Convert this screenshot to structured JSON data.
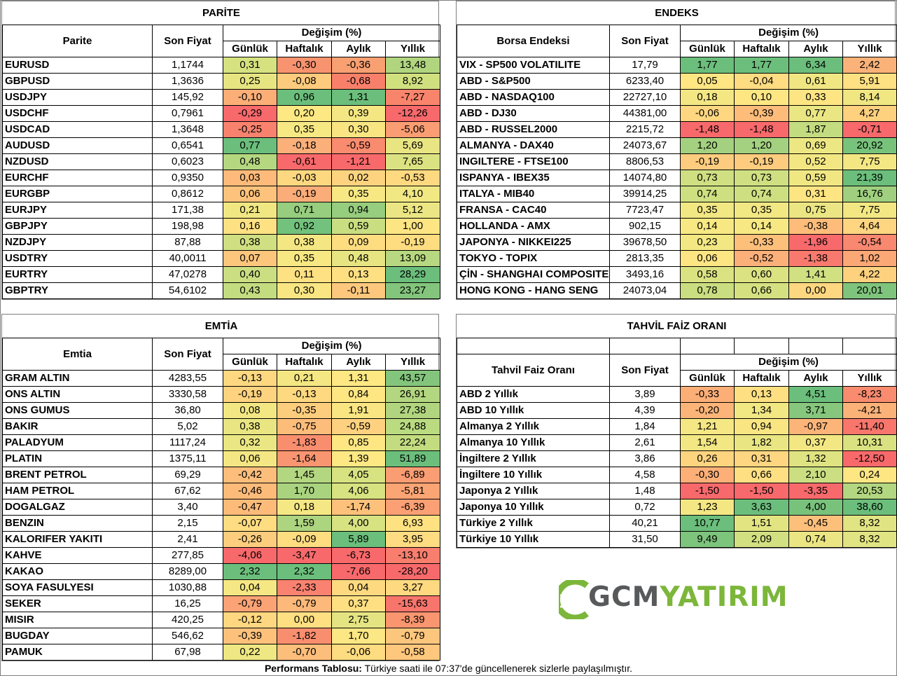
{
  "parite": {
    "title": "PARİTE",
    "col_name": "Parite",
    "col_price": "Son Fiyat",
    "col_change": "Değişim (%)",
    "sub": [
      "Günlük",
      "Haftalık",
      "Aylık",
      "Yıllık"
    ],
    "rows": [
      {
        "name": "EURUSD",
        "price": "1,1744",
        "vals": [
          "0,31",
          "-0,30",
          "-0,36",
          "13,48"
        ],
        "colors": [
          "#d6e27f",
          "#f8936f",
          "#f8a072",
          "#b1d57f"
        ]
      },
      {
        "name": "GBPUSD",
        "price": "1,3636",
        "vals": [
          "0,25",
          "-0,08",
          "-0,68",
          "8,92"
        ],
        "colors": [
          "#e7e582",
          "#fdcb7d",
          "#f8806b",
          "#d1e07f"
        ]
      },
      {
        "name": "USDJPY",
        "price": "145,92",
        "vals": [
          "-0,10",
          "0,96",
          "1,31",
          "-7,27"
        ],
        "colors": [
          "#fcae77",
          "#6bbe7b",
          "#6bbe7b",
          "#f9846c"
        ]
      },
      {
        "name": "USDCHF",
        "price": "0,7961",
        "vals": [
          "-0,29",
          "0,20",
          "0,39",
          "-12,26"
        ],
        "colors": [
          "#f8696b",
          "#fde883",
          "#f4e783",
          "#f8696b"
        ]
      },
      {
        "name": "USDCAD",
        "price": "1,3648",
        "vals": [
          "-0,25",
          "0,35",
          "0,30",
          "-5,06"
        ],
        "colors": [
          "#f9826e",
          "#f6e883",
          "#f9e683",
          "#fa9d73"
        ]
      },
      {
        "name": "AUDUSD",
        "price": "0,6541",
        "vals": [
          "0,77",
          "-0,18",
          "-0,59",
          "5,69"
        ],
        "colors": [
          "#6bbe7b",
          "#fbb07a",
          "#f98b6e",
          "#e8e582"
        ]
      },
      {
        "name": "NZDUSD",
        "price": "0,6023",
        "vals": [
          "0,48",
          "-0,61",
          "-1,21",
          "7,65"
        ],
        "colors": [
          "#b5d780",
          "#f8696b",
          "#f8696b",
          "#dbe281"
        ]
      },
      {
        "name": "EURCHF",
        "price": "0,9350",
        "vals": [
          "0,03",
          "-0,03",
          "0,02",
          "-0,53"
        ],
        "colors": [
          "#fdba7a",
          "#fdd880",
          "#fed37f",
          "#fed980"
        ]
      },
      {
        "name": "EURGBP",
        "price": "0,8612",
        "vals": [
          "0,06",
          "-0,19",
          "0,35",
          "4,10"
        ],
        "colors": [
          "#fdc37c",
          "#fbad79",
          "#f7e883",
          "#f1e783"
        ]
      },
      {
        "name": "EURJPY",
        "price": "171,38",
        "vals": [
          "0,21",
          "0,71",
          "0,94",
          "5,12"
        ],
        "colors": [
          "#f0e783",
          "#96cd7e",
          "#96cd7e",
          "#ebe683"
        ]
      },
      {
        "name": "GBPJPY",
        "price": "198,98",
        "vals": [
          "0,16",
          "0,92",
          "0,59",
          "1,00"
        ],
        "colors": [
          "#fde182",
          "#72c17c",
          "#c9de81",
          "#fee583"
        ]
      },
      {
        "name": "NZDJPY",
        "price": "87,88",
        "vals": [
          "0,38",
          "0,38",
          "0,09",
          "-0,19"
        ],
        "colors": [
          "#d0df81",
          "#f4e783",
          "#fedd81",
          "#fedd81"
        ]
      },
      {
        "name": "USDTRY",
        "price": "40,0011",
        "vals": [
          "0,07",
          "0,35",
          "0,48",
          "13,09"
        ],
        "colors": [
          "#fdc67d",
          "#f7e883",
          "#e7e582",
          "#b7d880"
        ]
      },
      {
        "name": "EURTRY",
        "price": "47,0278",
        "vals": [
          "0,40",
          "0,11",
          "0,13",
          "28,29"
        ],
        "colors": [
          "#cbde81",
          "#fee182",
          "#fee082",
          "#6bbe7b"
        ]
      },
      {
        "name": "GBPTRY",
        "price": "54,6102",
        "vals": [
          "0,43",
          "0,30",
          "-0,11",
          "23,27"
        ],
        "colors": [
          "#c4dc80",
          "#f9e683",
          "#fdc87d",
          "#83c57c"
        ]
      }
    ]
  },
  "endeks": {
    "title": "ENDEKS",
    "col_name": "Borsa Endeksi",
    "col_price": "Son Fiyat",
    "col_change": "Değişim (%)",
    "sub": [
      "Günlük",
      "Haftalık",
      "Aylık",
      "Yıllık"
    ],
    "rows": [
      {
        "name": "VIX  - SP500 VOLATILITE",
        "price": "17,79",
        "vals": [
          "1,77",
          "1,77",
          "6,34",
          "2,42"
        ],
        "colors": [
          "#6bbe7b",
          "#6bbe7b",
          "#6bbe7b",
          "#fbb279"
        ]
      },
      {
        "name": "ABD - S&P500",
        "price": "6233,40",
        "vals": [
          "0,05",
          "-0,04",
          "0,61",
          "5,91"
        ],
        "colors": [
          "#fee683",
          "#fedc81",
          "#f0e783",
          "#fee182"
        ]
      },
      {
        "name": "ABD - NASDAQ100",
        "price": "22727,10",
        "vals": [
          "0,18",
          "0,10",
          "0,33",
          "8,14"
        ],
        "colors": [
          "#f4e783",
          "#fee783",
          "#fee583",
          "#f0e783"
        ]
      },
      {
        "name": "ABD - DJ30",
        "price": "44381,00",
        "vals": [
          "-0,06",
          "-0,39",
          "0,77",
          "4,27"
        ],
        "colors": [
          "#fed780",
          "#fdbc7a",
          "#eae683",
          "#fed17f"
        ]
      },
      {
        "name": "ABD - RUSSEL2000",
        "price": "2215,72",
        "vals": [
          "-1,48",
          "-1,48",
          "1,87",
          "-0,71"
        ],
        "colors": [
          "#f8696b",
          "#f8696b",
          "#c4dc80",
          "#f8696b"
        ]
      },
      {
        "name": "ALMANYA - DAX40",
        "price": "24073,67",
        "vals": [
          "1,20",
          "1,20",
          "0,69",
          "20,92"
        ],
        "colors": [
          "#a4d17f",
          "#a4d17f",
          "#ede783",
          "#78c37c"
        ]
      },
      {
        "name": "INGILTERE - FTSE100",
        "price": "8806,53",
        "vals": [
          "-0,19",
          "-0,19",
          "0,52",
          "7,75"
        ],
        "colors": [
          "#fdcc7e",
          "#fdcc7e",
          "#f3e783",
          "#f3e783"
        ]
      },
      {
        "name": "ISPANYA - IBEX35",
        "price": "14074,80",
        "vals": [
          "0,73",
          "0,73",
          "0,59",
          "21,39"
        ],
        "colors": [
          "#cfdf81",
          "#cfdf81",
          "#f0e783",
          "#6bbe7b"
        ]
      },
      {
        "name": "ITALYA - MIB40",
        "price": "39914,25",
        "vals": [
          "0,74",
          "0,74",
          "0,31",
          "16,76"
        ],
        "colors": [
          "#cedf81",
          "#cedf81",
          "#fee583",
          "#a0d07f"
        ]
      },
      {
        "name": "FRANSA - CAC40",
        "price": "7723,47",
        "vals": [
          "0,35",
          "0,35",
          "0,75",
          "7,75"
        ],
        "colors": [
          "#f1e783",
          "#f1e783",
          "#ebe683",
          "#f3e783"
        ]
      },
      {
        "name": "HOLLANDA - AMX",
        "price": "902,15",
        "vals": [
          "0,14",
          "0,14",
          "-0,38",
          "4,64"
        ],
        "colors": [
          "#f7e883",
          "#f7e883",
          "#fdbc7a",
          "#fed580"
        ]
      },
      {
        "name": "JAPONYA - NIKKEI225",
        "price": "39678,50",
        "vals": [
          "0,23",
          "-0,33",
          "-1,96",
          "-0,54"
        ],
        "colors": [
          "#f2e783",
          "#fdc07b",
          "#f8696b",
          "#f98871"
        ]
      },
      {
        "name": "TOKYO - TOPIX",
        "price": "2813,35",
        "vals": [
          "0,06",
          "-0,52",
          "-1,38",
          "1,02"
        ],
        "colors": [
          "#fee583",
          "#fbb07a",
          "#f8796e",
          "#fca876"
        ]
      },
      {
        "name": "ÇİN - SHANGHAI COMPOSITE",
        "price": "3493,16",
        "vals": [
          "0,58",
          "0,60",
          "1,41",
          "4,22"
        ],
        "colors": [
          "#dbe281",
          "#dae281",
          "#d1e081",
          "#fed17f"
        ]
      },
      {
        "name": "HONG KONG - HANG SENG",
        "price": "24073,04",
        "vals": [
          "0,78",
          "0,66",
          "0,00",
          "20,01"
        ],
        "colors": [
          "#cadd80",
          "#d5e181",
          "#fed780",
          "#7fc47c"
        ]
      }
    ]
  },
  "emtia": {
    "title": "EMTİA",
    "col_name": "Emtia",
    "col_price": "Son Fiyat",
    "col_change": "Değişim (%)",
    "sub": [
      "Günlük",
      "Haftalık",
      "Aylık",
      "Yıllık"
    ],
    "rows": [
      {
        "name": "GRAM ALTIN",
        "price": "4283,55",
        "vals": [
          "-0,13",
          "0,21",
          "1,31",
          "43,57"
        ],
        "colors": [
          "#fed880",
          "#f4e783",
          "#fee883",
          "#83c57c"
        ]
      },
      {
        "name": "ONS ALTIN",
        "price": "3330,58",
        "vals": [
          "-0,19",
          "-0,13",
          "0,84",
          "26,91"
        ],
        "colors": [
          "#fdd37f",
          "#fed980",
          "#fee683",
          "#b3d680"
        ]
      },
      {
        "name": "ONS GUMUS",
        "price": "36,80",
        "vals": [
          "0,08",
          "-0,35",
          "1,91",
          "27,38"
        ],
        "colors": [
          "#f3e783",
          "#fdcd7e",
          "#f9e683",
          "#b1d57f"
        ]
      },
      {
        "name": "BAKIR",
        "price": "5,02",
        "vals": [
          "0,38",
          "-0,75",
          "-0,59",
          "24,88"
        ],
        "colors": [
          "#e8e582",
          "#fcbc7a",
          "#fdd17f",
          "#badb80"
        ]
      },
      {
        "name": "PALADYUM",
        "price": "1117,24",
        "vals": [
          "0,32",
          "-1,83",
          "0,85",
          "22,24"
        ],
        "colors": [
          "#eae683",
          "#f98e6f",
          "#fee683",
          "#c3dc80"
        ]
      },
      {
        "name": "PLATIN",
        "price": "1375,11",
        "vals": [
          "0,06",
          "-1,64",
          "1,39",
          "51,89"
        ],
        "colors": [
          "#f4e783",
          "#f99570",
          "#fee883",
          "#6bbe7b"
        ]
      },
      {
        "name": "BRENT PETROL",
        "price": "69,29",
        "vals": [
          "-0,42",
          "1,45",
          "4,05",
          "-6,89"
        ],
        "colors": [
          "#fdbe7b",
          "#b3d680",
          "#d7e281",
          "#fa9d73"
        ]
      },
      {
        "name": "HAM PETROL",
        "price": "67,62",
        "vals": [
          "-0,46",
          "1,70",
          "4,06",
          "-5,81"
        ],
        "colors": [
          "#fdbb7a",
          "#a9d37f",
          "#d7e281",
          "#fba474"
        ]
      },
      {
        "name": "DOGALGAZ",
        "price": "3,40",
        "vals": [
          "-0,47",
          "0,18",
          "-1,74",
          "-6,39"
        ],
        "colors": [
          "#fdbb7a",
          "#f5e783",
          "#fdc17b",
          "#fba074"
        ]
      },
      {
        "name": "BENZIN",
        "price": "2,15",
        "vals": [
          "-0,07",
          "1,59",
          "4,00",
          "6,93"
        ],
        "colors": [
          "#fedc81",
          "#add47f",
          "#d7e281",
          "#fee282"
        ]
      },
      {
        "name": "KALORIFER YAKITI",
        "price": "2,41",
        "vals": [
          "-0,26",
          "-0,09",
          "5,89",
          "3,95"
        ],
        "colors": [
          "#fdcd7e",
          "#fedd81",
          "#6bbe7b",
          "#fedc81"
        ]
      },
      {
        "name": "KAHVE",
        "price": "277,85",
        "vals": [
          "-4,06",
          "-3,47",
          "-6,73",
          "-13,10"
        ],
        "colors": [
          "#f8696b",
          "#f8696b",
          "#f8696b",
          "#f97e6d"
        ]
      },
      {
        "name": "KAKAO",
        "price": "8289,00",
        "vals": [
          "2,32",
          "2,32",
          "-7,66",
          "-28,20"
        ],
        "colors": [
          "#6bbe7b",
          "#6bbe7b",
          "#f8696b",
          "#f8696b"
        ]
      },
      {
        "name": "SOYA FASULYESI",
        "price": "1030,88",
        "vals": [
          "0,04",
          "-2,33",
          "0,04",
          "3,27"
        ],
        "colors": [
          "#f5e783",
          "#f98270",
          "#fed980",
          "#fed980"
        ]
      },
      {
        "name": "SEKER",
        "price": "16,25",
        "vals": [
          "-0,79",
          "-0,79",
          "0,37",
          "-15,63"
        ],
        "colors": [
          "#fca376",
          "#fcb97a",
          "#fee082",
          "#f8756c"
        ]
      },
      {
        "name": "MISIR",
        "price": "420,25",
        "vals": [
          "-0,12",
          "0,00",
          "2,75",
          "-8,39"
        ],
        "colors": [
          "#fed780",
          "#fedf82",
          "#e4e582",
          "#f9956f"
        ]
      },
      {
        "name": "BUGDAY",
        "price": "546,62",
        "vals": [
          "-0,39",
          "-1,82",
          "1,70",
          "-0,79"
        ],
        "colors": [
          "#fdc17b",
          "#f98e6f",
          "#fbe783",
          "#fdc67d"
        ]
      },
      {
        "name": "PAMUK",
        "price": "67,98",
        "vals": [
          "0,22",
          "-0,70",
          "-0,06",
          "-0,58"
        ],
        "colors": [
          "#eee783",
          "#fcbe7b",
          "#fedc81",
          "#fdc77d"
        ]
      }
    ]
  },
  "tahvil": {
    "title": "TAHVİL FAİZ ORANI",
    "col_name": "Tahvil Faiz Oranı",
    "col_price": "Son Fiyat",
    "col_change": "Değişim (%)",
    "sub": [
      "Günlük",
      "Haftalık",
      "Aylık",
      "Yıllık"
    ],
    "rows": [
      {
        "name": "ABD 2 Yıllık",
        "price": "3,89",
        "vals": [
          "-0,33",
          "0,13",
          "4,51",
          "-8,23"
        ],
        "colors": [
          "#fcae77",
          "#fee082",
          "#6bbe7b",
          "#f98b6e"
        ]
      },
      {
        "name": "ABD 10 Yıllık",
        "price": "4,39",
        "vals": [
          "-0,20",
          "1,34",
          "3,71",
          "-4,21"
        ],
        "colors": [
          "#fcb479",
          "#f1e783",
          "#86c67d",
          "#fbb279"
        ]
      },
      {
        "name": "Almanya 2 Yıllık",
        "price": "1,84",
        "vals": [
          "1,21",
          "0,94",
          "-0,97",
          "-11,40"
        ],
        "colors": [
          "#f5e783",
          "#f9e683",
          "#fcb479",
          "#f8766c"
        ]
      },
      {
        "name": "Almanya 10 Yıllık",
        "price": "2,61",
        "vals": [
          "1,54",
          "1,82",
          "0,37",
          "10,31"
        ],
        "colors": [
          "#f2e783",
          "#e8e582",
          "#f3e783",
          "#d9e181"
        ]
      },
      {
        "name": "İngiltere 2 Yıllık",
        "price": "3,86",
        "vals": [
          "0,26",
          "0,31",
          "1,32",
          "-12,50"
        ],
        "colors": [
          "#fed47f",
          "#fed580",
          "#dfe381",
          "#f8696b"
        ]
      },
      {
        "name": "İngiltere 10 Yıllık",
        "price": "4,58",
        "vals": [
          "-0,30",
          "0,66",
          "2,10",
          "0,24"
        ],
        "colors": [
          "#fcb077",
          "#fedf82",
          "#cbde81",
          "#fee683"
        ]
      },
      {
        "name": "Japonya 2 Yıllık",
        "price": "1,48",
        "vals": [
          "-1,50",
          "-1,50",
          "-3,35",
          "20,53"
        ],
        "colors": [
          "#f8696b",
          "#f8696b",
          "#f8696b",
          "#b3d680"
        ]
      },
      {
        "name": "Japonya 10 Yıllık",
        "price": "0,72",
        "vals": [
          "1,23",
          "3,63",
          "4,00",
          "38,60"
        ],
        "colors": [
          "#f4e783",
          "#6bbe7b",
          "#79c27c",
          "#6bbe7b"
        ]
      },
      {
        "name": "Türkiye 2 Yıllık",
        "price": "40,21",
        "vals": [
          "10,77",
          "1,51",
          "-0,45",
          "8,32"
        ],
        "colors": [
          "#6bbe7b",
          "#e2e482",
          "#fcc07b",
          "#e1e482"
        ]
      },
      {
        "name": "Türkiye 10 Yıllık",
        "price": "31,50",
        "vals": [
          "9,49",
          "2,09",
          "0,74",
          "8,32"
        ],
        "colors": [
          "#7dc47c",
          "#d3e081",
          "#ebe683",
          "#e1e482"
        ]
      }
    ]
  },
  "brand": {
    "part1": "GCM",
    "part2": "YATIRIM"
  },
  "footer": {
    "bold": "Performans Tablosu:",
    "text": " Türkiye saati ile 07:37'de güncellenerek sizlerle paylaşılmıştır."
  }
}
